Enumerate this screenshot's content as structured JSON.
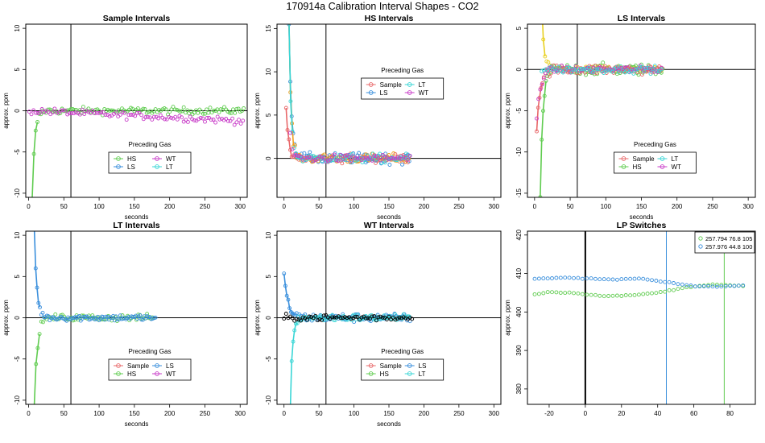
{
  "page": {
    "title": "170914a   Calibration Interval Shapes - CO2"
  },
  "colors": {
    "Sample": "#e8686a",
    "HS": "#60cc50",
    "LS": "#3a8fdc",
    "LT": "#3ad6d6",
    "WT": "#c83cc8",
    "Black": "#000000",
    "Orange": "#f0a020",
    "Yellow": "#e8d020"
  },
  "chart_data": [
    {
      "id": "sample",
      "type": "scatter",
      "title": "Sample Intervals",
      "xlabel": "seconds",
      "ylabel": "approx. ppm",
      "xlim": [
        -4,
        310
      ],
      "ylim": [
        -10.5,
        10.5
      ],
      "xticks": [
        0,
        50,
        100,
        150,
        200,
        250,
        300
      ],
      "yticks": [
        -10,
        -5,
        0,
        5,
        10
      ],
      "hline": 0,
      "vlines": [
        {
          "x": 60,
          "color": "Black"
        }
      ],
      "legend": {
        "title": "Preceding Gas",
        "position": "center",
        "cols": 2,
        "entries": [
          "HS",
          "WT",
          "LS",
          "LT"
        ]
      },
      "series": [
        {
          "name": "HS",
          "color": "HS",
          "x_range": [
            5,
            305
          ],
          "step": 2.5,
          "noise": 0.5,
          "curve": {
            "kind": "rise",
            "start": -11,
            "tau": 3.5
          },
          "line_until": 14
        },
        {
          "name": "WT",
          "color": "WT",
          "x_range": [
            1,
            305
          ],
          "step": 3,
          "noise": 0.5,
          "curve": {
            "kind": "drift",
            "slope": -0.004
          }
        }
      ]
    },
    {
      "id": "hs",
      "type": "scatter",
      "title": "HS Intervals",
      "xlabel": "seconds",
      "ylabel": "approx. ppm",
      "xlim": [
        -10,
        310
      ],
      "ylim": [
        -4.5,
        15.5
      ],
      "xticks": [
        0,
        50,
        100,
        150,
        200,
        250,
        300
      ],
      "yticks": [
        0,
        5,
        10,
        15
      ],
      "hline": 0,
      "vlines": [
        {
          "x": 60,
          "color": "Black"
        }
      ],
      "legend": {
        "title": "Preceding Gas",
        "position": "center",
        "cols": 2,
        "entries": [
          "Sample",
          "LT",
          "LS",
          "WT"
        ]
      },
      "series": [
        {
          "name": "Sample",
          "color": "Sample",
          "x_range": [
            3,
            180
          ],
          "step": 2,
          "noise": 0.6,
          "curve": {
            "kind": "decay",
            "start": 6,
            "tau": 3
          },
          "line_until": 14
        },
        {
          "name": "LS",
          "color": "LS",
          "x_range": [
            7,
            180
          ],
          "step": 2,
          "noise": 0.7,
          "curve": {
            "kind": "decay",
            "start": 16,
            "tau": 3.5
          },
          "line_until": 14
        },
        {
          "name": "Orange",
          "color": "Orange",
          "x_range": [
            7,
            180
          ],
          "step": 2.2,
          "noise": 0.6,
          "curve": {
            "kind": "decay",
            "start": 16,
            "tau": 3
          },
          "line_until": 14
        },
        {
          "name": "LT",
          "color": "LT",
          "x_range": [
            7,
            180
          ],
          "step": 2.5,
          "noise": 0.6,
          "curve": {
            "kind": "decay",
            "start": 16,
            "tau": 3
          },
          "line_until": 14
        },
        {
          "name": "WT",
          "color": "WT",
          "x_range": [
            9,
            180
          ],
          "step": 3,
          "noise": 0.5,
          "curve": {
            "kind": "decay",
            "start": 3,
            "tau": 3
          }
        }
      ]
    },
    {
      "id": "ls",
      "type": "scatter",
      "title": "LS Intervals",
      "xlabel": "seconds",
      "ylabel": "approx. ppm",
      "xlim": [
        -10,
        310
      ],
      "ylim": [
        -15.5,
        5.5
      ],
      "xticks": [
        0,
        50,
        100,
        150,
        200,
        250,
        300
      ],
      "yticks": [
        -15,
        -10,
        -5,
        0,
        5
      ],
      "hline": 0,
      "vlines": [
        {
          "x": 60,
          "color": "Black"
        }
      ],
      "legend": {
        "title": "Preceding Gas",
        "position": "center",
        "cols": 2,
        "entries": [
          "Sample",
          "LT",
          "HS",
          "WT"
        ]
      },
      "series": [
        {
          "name": "Yellow",
          "color": "Yellow",
          "x_range": [
            10,
            180
          ],
          "step": 2.3,
          "noise": 0.5,
          "curve": {
            "kind": "decay",
            "start": 8,
            "tau": 3
          },
          "line_until": 16
        },
        {
          "name": "HS",
          "color": "HS",
          "x_range": [
            8,
            180
          ],
          "step": 2,
          "noise": 0.8,
          "curve": {
            "kind": "rise",
            "start": -16,
            "tau": 3.5
          },
          "line_until": 16
        },
        {
          "name": "Sample",
          "color": "Sample",
          "x_range": [
            3,
            180
          ],
          "step": 2,
          "noise": 0.7,
          "curve": {
            "kind": "rise",
            "start": -7,
            "tau": 5
          },
          "line_until": 12
        },
        {
          "name": "WT",
          "color": "WT",
          "x_range": [
            3,
            180
          ],
          "step": 2.5,
          "noise": 0.5,
          "curve": {
            "kind": "rise",
            "start": -6,
            "tau": 5
          }
        },
        {
          "name": "LT",
          "color": "LT",
          "x_range": [
            10,
            180
          ],
          "step": 3,
          "noise": 0.5,
          "curve": {
            "kind": "flat"
          }
        }
      ]
    },
    {
      "id": "lt",
      "type": "scatter",
      "title": "LT Intervals",
      "xlabel": "seconds",
      "ylabel": "approx. ppm",
      "xlim": [
        -4,
        310
      ],
      "ylim": [
        -10.5,
        10.5
      ],
      "xticks": [
        0,
        50,
        100,
        150,
        200,
        250,
        300
      ],
      "yticks": [
        -10,
        -5,
        0,
        5,
        10
      ],
      "hline": 0,
      "vlines": [
        {
          "x": 60,
          "color": "Black"
        }
      ],
      "legend": {
        "title": "Preceding Gas",
        "position": "center",
        "cols": 2,
        "entries": [
          "Sample",
          "LS",
          "HS",
          "WT"
        ]
      },
      "series": [
        {
          "name": "HS",
          "color": "HS",
          "x_range": [
            8,
            180
          ],
          "step": 2.5,
          "noise": 0.5,
          "curve": {
            "kind": "rise",
            "start": -11,
            "tau": 4
          },
          "line_until": 16
        },
        {
          "name": "LS",
          "color": "LS",
          "x_range": [
            8,
            180
          ],
          "step": 2,
          "noise": 0.45,
          "curve": {
            "kind": "decay",
            "start": 11,
            "tau": 3.5
          },
          "line_until": 16
        }
      ]
    },
    {
      "id": "wt",
      "type": "scatter",
      "title": "WT Intervals",
      "xlabel": "seconds",
      "ylabel": "approx. ppm",
      "xlim": [
        -10,
        310
      ],
      "ylim": [
        -10.5,
        10.5
      ],
      "xticks": [
        0,
        50,
        100,
        150,
        200,
        250,
        300
      ],
      "yticks": [
        -10,
        -5,
        0,
        5,
        10
      ],
      "hline": 0,
      "vlines": [
        {
          "x": 60,
          "color": "Black"
        }
      ],
      "legend": {
        "title": "Preceding Gas",
        "position": "center",
        "cols": 2,
        "entries": [
          "Sample",
          "LS",
          "HS",
          "LT"
        ]
      },
      "series": [
        {
          "name": "LS",
          "color": "LS",
          "x_range": [
            0,
            180
          ],
          "step": 2,
          "noise": 0.6,
          "curve": {
            "kind": "decay",
            "start": 5,
            "tau": 6
          },
          "line_until": 16
        },
        {
          "name": "LT",
          "color": "LT",
          "x_range": [
            9,
            180
          ],
          "step": 2,
          "noise": 0.5,
          "curve": {
            "kind": "rise",
            "start": -11,
            "tau": 3
          },
          "line_until": 20
        },
        {
          "name": "Black",
          "color": "Black",
          "x_range": [
            0,
            185
          ],
          "step": 3,
          "noise": 0.45,
          "curve": {
            "kind": "flat"
          }
        }
      ]
    },
    {
      "id": "lp",
      "type": "scatter",
      "title": "LP Switches",
      "xlabel": "",
      "ylabel": "approx. ppm",
      "xlim": [
        -32,
        94
      ],
      "ylim": [
        376,
        421
      ],
      "xticks": [
        -20,
        0,
        20,
        40,
        60,
        80
      ],
      "yticks": [
        380,
        390,
        400,
        410,
        420
      ],
      "hline": null,
      "vlines": [
        {
          "x": 0,
          "color": "Black",
          "width": 2
        },
        {
          "x": 44.8,
          "color": "LS"
        },
        {
          "x": 76.8,
          "color": "HS"
        }
      ],
      "legend": {
        "position": "top-right",
        "cols": 1,
        "rows": [
          {
            "color": "HS",
            "text": "257.794 76.8 105"
          },
          {
            "color": "LS",
            "text": "257.976 44.8 100"
          }
        ]
      },
      "series": [
        {
          "name": "257.794 76.8 105",
          "color": "HS",
          "x_range": [
            -28,
            88
          ],
          "step": 2.4,
          "noise": 0.12,
          "curve": {
            "kind": "points",
            "pts": [
              [
                -28,
                404.6
              ],
              [
                -20,
                405.2
              ],
              [
                -5,
                404.9
              ],
              [
                10,
                404.1
              ],
              [
                25,
                404.3
              ],
              [
                40,
                405.0
              ],
              [
                55,
                406.3
              ],
              [
                70,
                407.2
              ],
              [
                88,
                406.7
              ]
            ]
          }
        },
        {
          "name": "257.976 44.8 100",
          "color": "LS",
          "x_range": [
            -28,
            88
          ],
          "step": 2.4,
          "noise": 0.12,
          "curve": {
            "kind": "points",
            "pts": [
              [
                -28,
                408.6
              ],
              [
                -10,
                408.9
              ],
              [
                0,
                408.7
              ],
              [
                15,
                408.4
              ],
              [
                30,
                408.7
              ],
              [
                45,
                407.7
              ],
              [
                60,
                406.7
              ],
              [
                75,
                406.6
              ],
              [
                88,
                406.9
              ]
            ]
          }
        }
      ]
    }
  ]
}
